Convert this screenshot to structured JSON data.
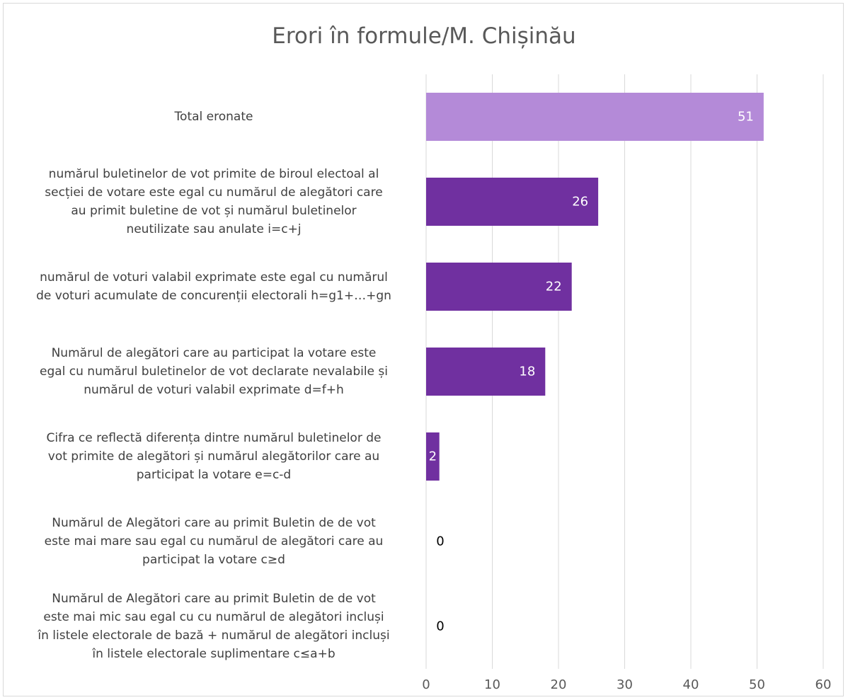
{
  "chart_data": {
    "type": "bar",
    "orientation": "horizontal",
    "title": "Erori în formule/M. Chișinău",
    "xlabel": "",
    "ylabel": "",
    "xlim": [
      0,
      60
    ],
    "ticks": [
      0,
      10,
      20,
      30,
      40,
      50,
      60
    ],
    "grid": true,
    "categories": [
      "Total eronate",
      "numărul buletinelor de vot primite de biroul electoal al secției de votare este egal cu numărul de alegători care au primit buletine de vot și numărul buletinelor neutilizate sau anulate i=c+j",
      "numărul de voturi valabil exprimate este egal cu numărul de voturi acumulate de concurenții electorali h=g1+…+gn",
      "Numărul de alegători care au participat la votare este egal cu numărul buletinelor de vot declarate nevalabile și numărul de voturi valabil exprimate d=f+h",
      "Cifra ce reflectă diferența dintre numărul buletinelor de vot primite de alegători și numărul alegătorilor care au participat la votare e=c-d",
      "Numărul de Alegători care au primit Buletin de de vot este mai mare sau egal cu numărul de alegători care au participat la votare c≥d",
      "Numărul de Alegători care au primit Buletin de de vot este mai mic sau egal cu cu numărul de alegători incluși în listele electorale de bază + numărul de alegători incluși în listele electorale suplimentare c≤a+b"
    ],
    "category_lines": [
      [
        "Total eronate"
      ],
      [
        "numărul buletinelor de vot primite de biroul electoal al",
        "secției de votare este egal cu numărul de alegători care",
        "au primit buletine de vot și numărul buletinelor",
        "neutilizate sau anulate i=c+j"
      ],
      [
        "numărul de voturi valabil exprimate este egal cu numărul",
        "de voturi acumulate de concurenții electorali h=g1+…+gn"
      ],
      [
        "Numărul de alegători care au participat la votare este",
        "egal cu numărul buletinelor de vot declarate nevalabile și",
        "numărul de voturi valabil exprimate d=f+h"
      ],
      [
        "Cifra ce reflectă diferența dintre numărul buletinelor de",
        "vot primite de alegători și numărul alegătorilor care au",
        "participat la votare e=c-d"
      ],
      [
        "Numărul de Alegători care au primit Buletin de de vot",
        "este mai mare sau egal cu numărul de alegători care au",
        "participat la votare c≥d"
      ],
      [
        "Numărul de Alegători care au primit Buletin de de vot",
        "este mai mic sau egal cu cu numărul de alegători incluși",
        "în listele electorale de bază + numărul de alegători incluși",
        "în listele electorale suplimentare c≤a+b"
      ]
    ],
    "values": [
      51,
      26,
      22,
      18,
      2,
      0,
      0
    ],
    "data_labels": [
      "51",
      "26",
      "22",
      "18",
      "2",
      "0",
      "0"
    ],
    "colors": [
      "#b48ad8",
      "#7030a0",
      "#7030a0",
      "#7030a0",
      "#7030a0",
      "#7030a0",
      "#7030a0"
    ],
    "gridline_color": "#d9d9d9",
    "tick_color": "#595959"
  }
}
